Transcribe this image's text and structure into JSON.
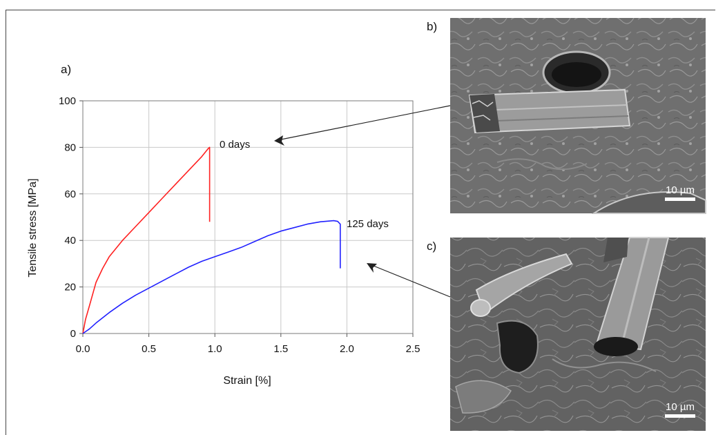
{
  "panels": {
    "a": "a)",
    "b": "b)",
    "c": "c)"
  },
  "chart_data": {
    "type": "line",
    "xlabel": "Strain [%]",
    "ylabel": "Tensile stress [MPa]",
    "xlim": [
      0,
      2.5
    ],
    "ylim": [
      0,
      100
    ],
    "xticks": [
      "0.0",
      "0.5",
      "1.0",
      "1.5",
      "2.0",
      "2.5"
    ],
    "yticks": [
      "0",
      "20",
      "40",
      "60",
      "80",
      "100"
    ],
    "grid": true,
    "series": [
      {
        "name": "0 days",
        "color": "#ff2020",
        "x": [
          0.0,
          0.02,
          0.05,
          0.08,
          0.1,
          0.15,
          0.2,
          0.3,
          0.4,
          0.5,
          0.6,
          0.7,
          0.8,
          0.9,
          0.95,
          0.96,
          0.96
        ],
        "y": [
          0,
          6,
          12,
          18,
          22,
          28,
          33,
          40,
          46,
          52,
          58,
          64,
          70,
          76,
          79.5,
          80,
          48
        ]
      },
      {
        "name": "125 days",
        "color": "#2020ff",
        "x": [
          0.0,
          0.05,
          0.1,
          0.2,
          0.3,
          0.4,
          0.5,
          0.6,
          0.7,
          0.8,
          0.9,
          1.0,
          1.1,
          1.2,
          1.3,
          1.4,
          1.5,
          1.6,
          1.7,
          1.8,
          1.9,
          1.93,
          1.95,
          1.95
        ],
        "y": [
          0,
          2,
          4.5,
          9,
          13,
          16.5,
          19.5,
          22.5,
          25.5,
          28.5,
          31,
          33,
          35,
          37,
          39.5,
          42,
          44,
          45.5,
          47,
          48,
          48.5,
          48.2,
          47,
          28
        ]
      }
    ],
    "annotations": [
      "0 days",
      "125 days"
    ]
  },
  "images": {
    "b_scale": "10 µm",
    "c_scale": "10 µm"
  },
  "colors": {
    "red_curve": "#ff2020",
    "blue_curve": "#2020ff",
    "grid": "#c8c8c8",
    "sem_background": "#6e6e6e"
  }
}
